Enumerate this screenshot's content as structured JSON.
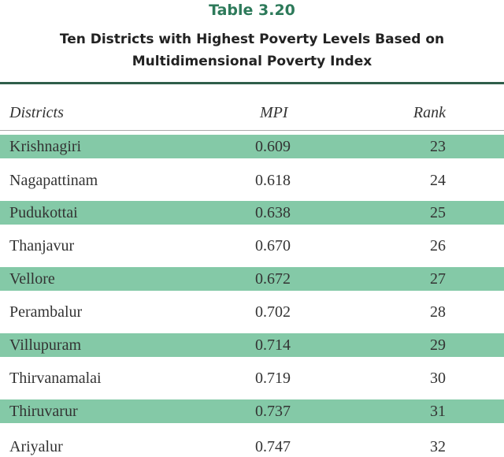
{
  "header": {
    "table_label": "Table 3.20",
    "title": [
      "Ten Districts with Highest Poverty Levels Based on",
      "Multidimensional Poverty Index"
    ]
  },
  "table": {
    "columns": [
      "Districts",
      "MPI",
      "Rank"
    ],
    "rows": [
      [
        "Krishnagiri",
        "0.609",
        "23"
      ],
      [
        "Nagapattinam",
        "0.618",
        "24"
      ],
      [
        "Pudukottai",
        "0.638",
        "25"
      ],
      [
        "Thanjavur",
        "0.670",
        "26"
      ],
      [
        "Vellore",
        "0.672",
        "27"
      ],
      [
        "Perambalur",
        "0.702",
        "28"
      ],
      [
        "Villupuram",
        "0.714",
        "29"
      ],
      [
        "Thirvanamalai",
        "0.719",
        "30"
      ],
      [
        "Thiruvarur",
        "0.737",
        "31"
      ],
      [
        "Ariyalur",
        "0.747",
        "32"
      ]
    ]
  }
}
